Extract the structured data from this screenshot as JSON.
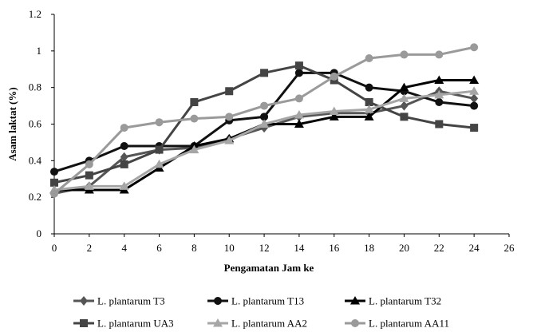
{
  "chart_data": {
    "type": "line",
    "title": "",
    "xlabel": "Pengamatan Jam ke",
    "ylabel": "Asam laktat (%)",
    "xlim": [
      0,
      26
    ],
    "ylim": [
      0,
      1.2
    ],
    "x_ticks": [
      0,
      2,
      4,
      6,
      8,
      10,
      12,
      14,
      16,
      18,
      20,
      22,
      24,
      26
    ],
    "y_ticks": [
      0,
      0.2,
      0.4,
      0.6,
      0.8,
      1,
      1.2
    ],
    "y_tick_labels": [
      "0",
      "0.2",
      "0.4",
      "0.6",
      "0.8",
      "1",
      "1.2"
    ],
    "grid": false,
    "legend_position": "bottom",
    "x": [
      0,
      2,
      4,
      6,
      8,
      10,
      12,
      14,
      16,
      18,
      20,
      22,
      24
    ],
    "series": [
      {
        "name": "L. plantarum T3",
        "marker": "diamond",
        "color": "#555555",
        "values": [
          0.22,
          0.26,
          0.42,
          0.46,
          0.47,
          0.52,
          0.58,
          0.64,
          0.66,
          0.66,
          0.7,
          0.78,
          0.74
        ]
      },
      {
        "name": "L. plantarum T13",
        "marker": "circle",
        "color": "#111111",
        "values": [
          0.34,
          0.4,
          0.48,
          0.48,
          0.48,
          0.62,
          0.64,
          0.88,
          0.88,
          0.8,
          0.78,
          0.72,
          0.7
        ]
      },
      {
        "name": "L. plantarum T32",
        "marker": "triangle",
        "color": "#000000",
        "values": [
          0.24,
          0.24,
          0.24,
          0.36,
          0.48,
          0.52,
          0.6,
          0.6,
          0.64,
          0.64,
          0.8,
          0.84,
          0.84
        ]
      },
      {
        "name": "L. plantarum UA3",
        "marker": "square",
        "color": "#444444",
        "values": [
          0.28,
          0.32,
          0.38,
          0.46,
          0.72,
          0.78,
          0.88,
          0.92,
          0.84,
          0.72,
          0.64,
          0.6,
          0.58
        ]
      },
      {
        "name": "L. plantarum AA2",
        "marker": "triangle",
        "color": "#a6a6a6",
        "values": [
          0.24,
          0.26,
          0.26,
          0.38,
          0.46,
          0.51,
          0.6,
          0.65,
          0.67,
          0.68,
          0.74,
          0.76,
          0.78
        ]
      },
      {
        "name": "L. plantarum AA11",
        "marker": "circle",
        "color": "#9a9a9a",
        "values": [
          0.22,
          0.38,
          0.58,
          0.61,
          0.63,
          0.64,
          0.7,
          0.74,
          0.86,
          0.96,
          0.98,
          0.98,
          1.02
        ]
      }
    ]
  }
}
